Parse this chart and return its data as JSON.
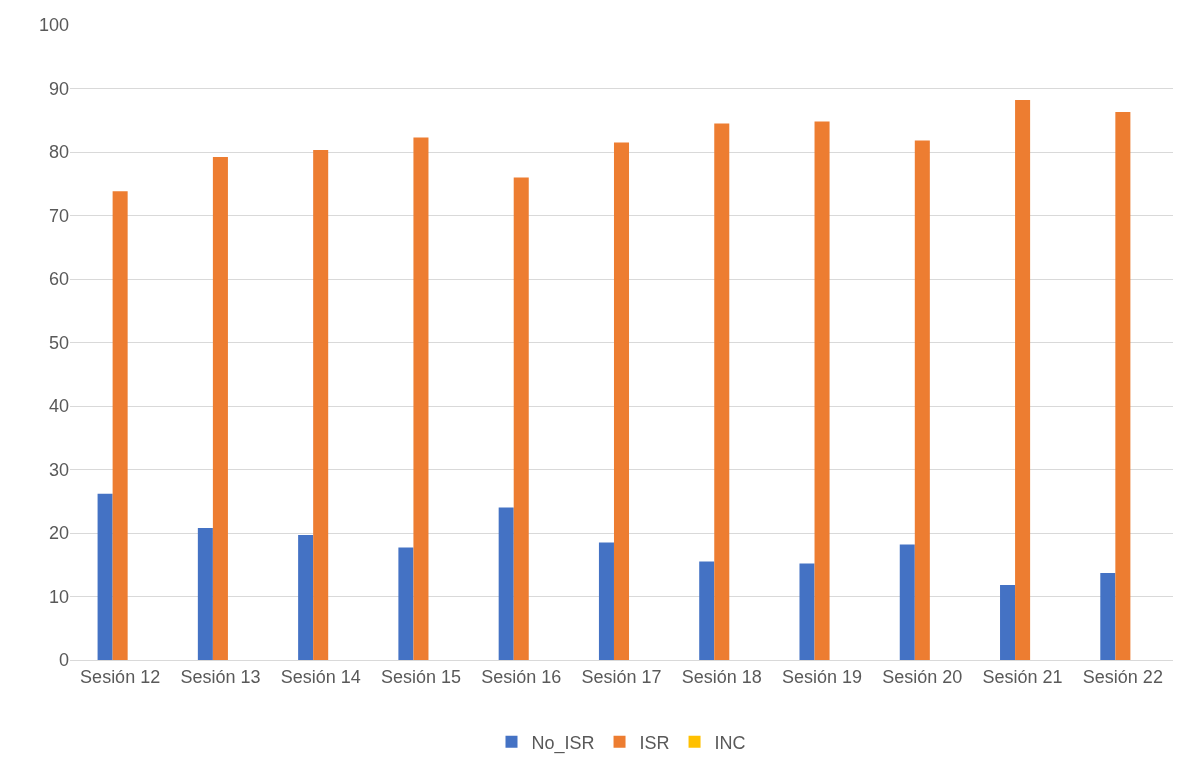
{
  "chart_data": {
    "type": "bar",
    "categories": [
      "Sesión 12",
      "Sesión 13",
      "Sesión 14",
      "Sesión 15",
      "Sesión 16",
      "Sesión 17",
      "Sesión 18",
      "Sesión 19",
      "Sesión 20",
      "Sesión 21",
      "Sesión 22"
    ],
    "series": [
      {
        "name": "No_ISR",
        "color": "#4472c4",
        "values": [
          26.2,
          20.8,
          19.7,
          17.7,
          24.0,
          18.5,
          15.5,
          15.2,
          18.2,
          11.8,
          13.7
        ]
      },
      {
        "name": "ISR",
        "color": "#ed7d31",
        "values": [
          73.8,
          79.2,
          80.3,
          82.3,
          76.0,
          81.5,
          84.5,
          84.8,
          81.8,
          88.2,
          86.3
        ]
      },
      {
        "name": "INC",
        "color": "#ffc000",
        "values": [
          0,
          0,
          0,
          0,
          0,
          0,
          0,
          0,
          0,
          0,
          0
        ]
      }
    ],
    "ylim": [
      0,
      100
    ],
    "yticks": [
      0,
      10,
      20,
      30,
      40,
      50,
      60,
      70,
      80,
      90,
      100
    ],
    "grid": "y",
    "legend": "bottom"
  }
}
